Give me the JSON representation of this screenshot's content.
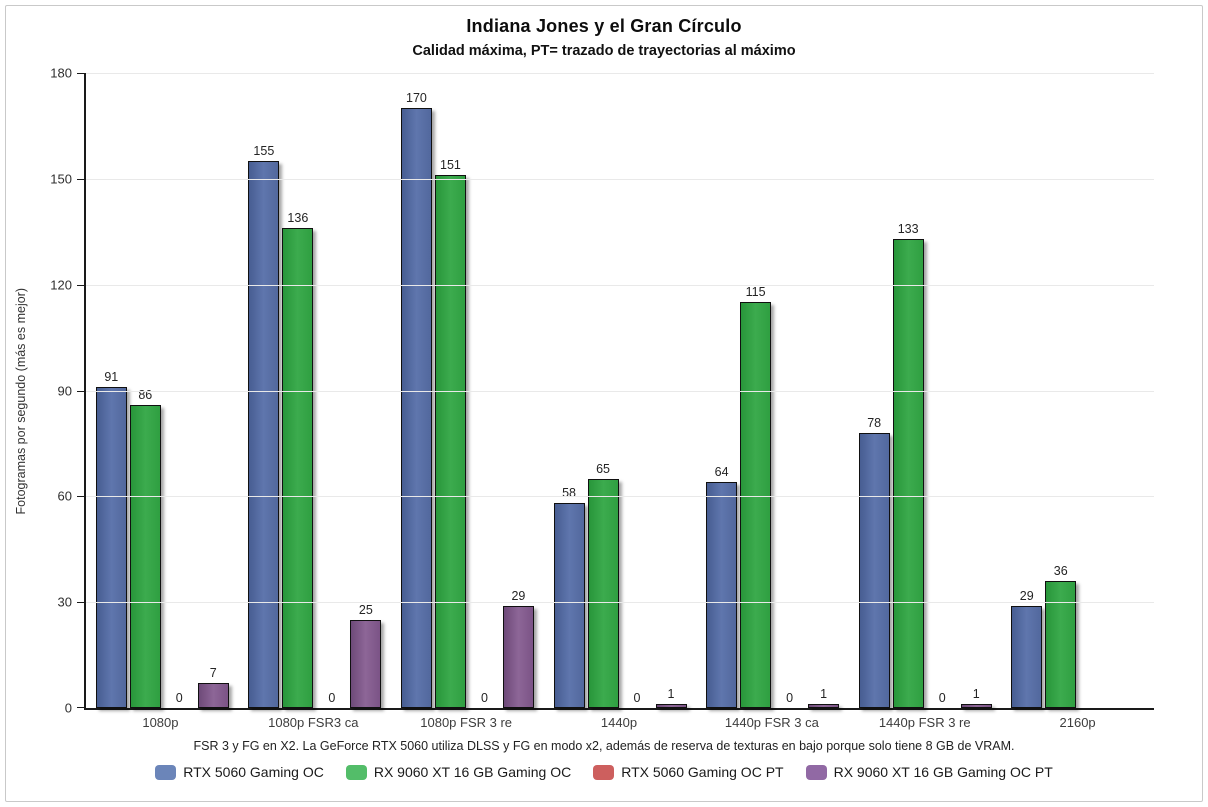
{
  "title": "Indiana Jones y el Gran Círculo",
  "subtitle": "Calidad máxima, PT= trazado de trayectorias al máximo",
  "footnote": "FSR 3 y FG en X2. La GeForce RTX 5060 utiliza DLSS y FG en modo x2, además de reserva de texturas en bajo porque solo tiene 8 GB de VRAM.",
  "chart_data": {
    "type": "bar",
    "title": "Indiana Jones y el Gran Círculo",
    "subtitle": "Calidad máxima, PT= trazado de trayectorias al máximo",
    "xlabel": "",
    "ylabel": "Fotogramas por segundo (más es mejor)",
    "ylim": [
      0,
      180
    ],
    "ytick_step": 30,
    "grid": "horizontal",
    "legend_position": "bottom",
    "axis_color": "#1a1a1a",
    "grid_color": "#e9e9e9",
    "categories": [
      "1080p",
      "1080p FSR3 ca",
      "1080p FSR 3 re",
      "1440p",
      "1440p FSR 3 ca",
      "1440p FSR 3 re",
      "2160p"
    ],
    "series": [
      {
        "name": "RTX 5060 Gaming OC",
        "color": "#52689d",
        "color_dark": "#475d92",
        "color_light": "#5f76ad",
        "legend_color": "#6b85b9",
        "values": [
          91,
          155,
          170,
          58,
          64,
          78,
          29
        ]
      },
      {
        "name": "RX 9060 XT 16 GB Gaming OC",
        "color": "#2f9f41",
        "color_dark": "#28963a",
        "color_light": "#3cab4e",
        "legend_color": "#53bd69",
        "values": [
          86,
          136,
          151,
          65,
          115,
          133,
          36
        ]
      },
      {
        "name": "RTX 5060 Gaming OC PT",
        "color": "#c0504d",
        "color_dark": "#b34744",
        "color_light": "#cd5f5e",
        "legend_color": "#cd5f5e",
        "values": [
          0,
          0,
          0,
          0,
          0,
          0,
          null
        ]
      },
      {
        "name": "RX 9060 XT 16 GB Gaming OC PT",
        "color": "#7b5386",
        "color_dark": "#6e4a79",
        "color_light": "#8d6697",
        "legend_color": "#9169a4",
        "values": [
          7,
          25,
          29,
          1,
          1,
          1,
          null
        ]
      }
    ]
  }
}
